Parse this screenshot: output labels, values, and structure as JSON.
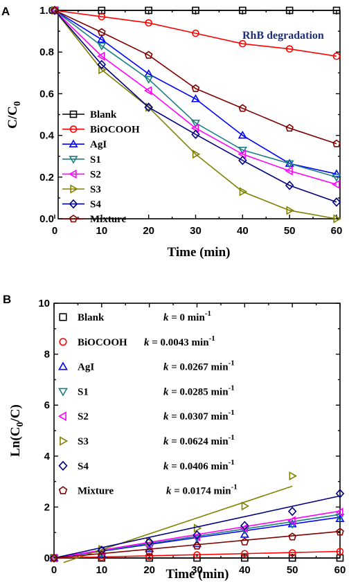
{
  "chart_data": [
    {
      "panel": "A",
      "type": "line",
      "xlabel": "Time (min)",
      "ylabel": "C/C",
      "ylabel_sub": "0",
      "annotation": "RhB degradation",
      "xlim": [
        0,
        60
      ],
      "ylim": [
        0,
        1.0
      ],
      "xticks": [
        "0",
        "10",
        "20",
        "30",
        "40",
        "50",
        "60"
      ],
      "yticks": [
        "0.0",
        "0.2",
        "0.4",
        "0.6",
        "0.8",
        "1.0"
      ],
      "legend_position": "lower-left",
      "x": [
        0,
        10,
        20,
        30,
        40,
        50,
        60
      ],
      "series": [
        {
          "name": "Blank",
          "color": "#000000",
          "marker": "square",
          "values": [
            1.0,
            1.0,
            1.0,
            1.0,
            1.0,
            1.0,
            1.0
          ]
        },
        {
          "name": "BiOCOOH",
          "color": "#ff0000",
          "marker": "circle",
          "values": [
            1.0,
            0.97,
            0.94,
            0.89,
            0.84,
            0.815,
            0.78
          ]
        },
        {
          "name": "AgI",
          "color": "#0000ff",
          "marker": "triangle-up",
          "values": [
            1.0,
            0.86,
            0.695,
            0.575,
            0.4,
            0.265,
            0.215
          ]
        },
        {
          "name": "S1",
          "color": "#1a7f80",
          "marker": "triangle-down",
          "values": [
            1.0,
            0.83,
            0.67,
            0.46,
            0.33,
            0.265,
            0.2
          ]
        },
        {
          "name": "S2",
          "color": "#ff00ff",
          "marker": "triangle-left",
          "values": [
            1.0,
            0.78,
            0.615,
            0.435,
            0.31,
            0.23,
            0.165
          ]
        },
        {
          "name": "S3",
          "color": "#808000",
          "marker": "triangle-right",
          "values": [
            1.0,
            0.715,
            0.535,
            0.31,
            0.13,
            0.04,
            0.0
          ]
        },
        {
          "name": "S4",
          "color": "#000080",
          "marker": "diamond",
          "values": [
            1.0,
            0.74,
            0.535,
            0.405,
            0.28,
            0.16,
            0.08
          ]
        },
        {
          "name": "Mixture",
          "color": "#800000",
          "marker": "pentagon",
          "values": [
            1.0,
            0.895,
            0.785,
            0.625,
            0.53,
            0.435,
            0.36
          ]
        }
      ]
    },
    {
      "panel": "B",
      "type": "scatter",
      "xlabel": "Time (min)",
      "ylabel": "Ln(C",
      "ylabel_sub": "0",
      "ylabel_end": "/C)",
      "xlim": [
        0,
        60
      ],
      "ylim": [
        0,
        10
      ],
      "xticks": [
        "0",
        "10",
        "20",
        "30",
        "40",
        "50",
        "60"
      ],
      "yticks": [
        "0",
        "2",
        "4",
        "6",
        "8",
        "10"
      ],
      "legend_position": "top-left",
      "series": [
        {
          "name": "Blank",
          "k_label": "k = 0 min",
          "k": 0,
          "color": "#000000",
          "marker": "square",
          "x": [
            0,
            10,
            20,
            30,
            40,
            50,
            60
          ],
          "values": [
            0,
            0,
            0,
            0,
            0,
            0,
            0
          ]
        },
        {
          "name": "BiOCOOH",
          "k_label": "k = 0.0043 min",
          "k": 0.0043,
          "color": "#ff0000",
          "marker": "circle",
          "x": [
            0,
            10,
            20,
            30,
            40,
            50,
            60
          ],
          "values": [
            0,
            0.03,
            0.06,
            0.12,
            0.17,
            0.2,
            0.25
          ]
        },
        {
          "name": "AgI",
          "k_label": "k = 0.0267 min",
          "k": 0.0267,
          "color": "#0000ff",
          "marker": "triangle-up",
          "x": [
            0,
            10,
            20,
            30,
            40,
            50,
            60
          ],
          "values": [
            0,
            0.15,
            0.36,
            0.55,
            0.92,
            1.33,
            1.54
          ]
        },
        {
          "name": "S1",
          "k_label": "k = 0.0285 min",
          "k": 0.0285,
          "color": "#1a7f80",
          "marker": "triangle-down",
          "x": [
            0,
            10,
            20,
            30,
            40,
            50,
            60
          ],
          "values": [
            0,
            0.19,
            0.4,
            0.78,
            1.11,
            1.33,
            1.61
          ]
        },
        {
          "name": "S2",
          "k_label": "k = 0.0307 min",
          "k": 0.0307,
          "color": "#ff00ff",
          "marker": "triangle-left",
          "x": [
            0,
            10,
            20,
            30,
            40,
            50,
            60
          ],
          "values": [
            0,
            0.25,
            0.49,
            0.83,
            1.17,
            1.47,
            1.8
          ]
        },
        {
          "name": "S3",
          "k_label": "k = 0.0624 min",
          "k": 0.0624,
          "color": "#808000",
          "marker": "triangle-right",
          "x": [
            0,
            10,
            20,
            30,
            40,
            50
          ],
          "values": [
            0,
            0.34,
            0.63,
            1.17,
            2.04,
            3.22
          ]
        },
        {
          "name": "S4",
          "k_label": "k = 0.0406 min",
          "k": 0.0406,
          "color": "#000080",
          "marker": "diamond",
          "x": [
            0,
            10,
            20,
            30,
            40,
            50,
            60
          ],
          "values": [
            0,
            0.3,
            0.63,
            0.9,
            1.27,
            1.83,
            2.53
          ]
        },
        {
          "name": "Mixture",
          "k_label": "k = 0.0174 min",
          "k": 0.0174,
          "color": "#800000",
          "marker": "pentagon",
          "x": [
            0,
            10,
            20,
            30,
            40,
            50,
            60
          ],
          "values": [
            0,
            0.11,
            0.24,
            0.47,
            0.63,
            0.83,
            1.02
          ]
        }
      ],
      "k_superscript": "-1"
    }
  ]
}
